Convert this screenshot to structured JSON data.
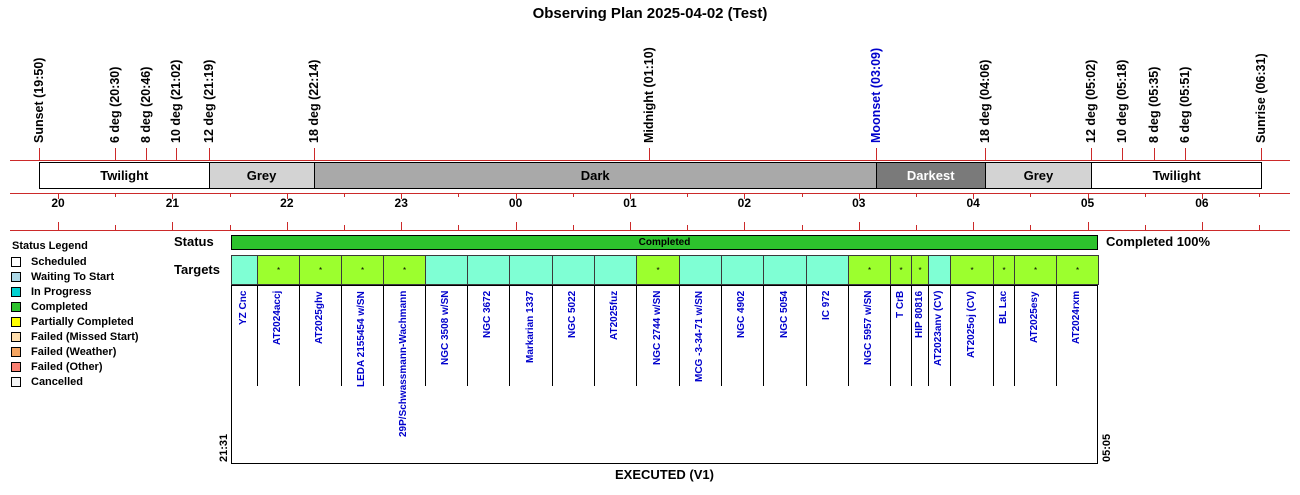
{
  "title": "Observing Plan 2025-04-02 (Test)",
  "events": [
    {
      "label": "Sunset (19:50)",
      "time": "19:50",
      "color": "#000000"
    },
    {
      "label": "6 deg (20:30)",
      "time": "20:30",
      "color": "#000000"
    },
    {
      "label": "8 deg (20:46)",
      "time": "20:46",
      "color": "#000000"
    },
    {
      "label": "10 deg (21:02)",
      "time": "21:02",
      "color": "#000000"
    },
    {
      "label": "12 deg (21:19)",
      "time": "21:19",
      "color": "#000000"
    },
    {
      "label": "18 deg (22:14)",
      "time": "22:14",
      "color": "#000000"
    },
    {
      "label": "Midnight (01:10)",
      "time": "01:10",
      "color": "#000000"
    },
    {
      "label": "Moonset (03:09)",
      "time": "03:09",
      "color": "#0000cc"
    },
    {
      "label": "18 deg (04:06)",
      "time": "04:06",
      "color": "#000000"
    },
    {
      "label": "12 deg (05:02)",
      "time": "05:02",
      "color": "#000000"
    },
    {
      "label": "10 deg (05:18)",
      "time": "05:18",
      "color": "#000000"
    },
    {
      "label": "8 deg (05:35)",
      "time": "05:35",
      "color": "#000000"
    },
    {
      "label": "6 deg (05:51)",
      "time": "05:51",
      "color": "#000000"
    },
    {
      "label": "Sunrise (06:31)",
      "time": "06:31",
      "color": "#000000"
    }
  ],
  "bands": [
    {
      "label": "Twilight",
      "start": "19:50",
      "end": "21:19",
      "color": "#ffffff",
      "text_color": "#000000"
    },
    {
      "label": "Grey",
      "start": "21:19",
      "end": "22:14",
      "color": "#d3d3d3",
      "text_color": "#000000"
    },
    {
      "label": "Dark",
      "start": "22:14",
      "end": "03:09",
      "color": "#a9a9a9",
      "text_color": "#000000"
    },
    {
      "label": "Darkest",
      "start": "03:09",
      "end": "04:06",
      "color": "#7a7a7a",
      "text_color": "#ffffff"
    },
    {
      "label": "Grey",
      "start": "04:06",
      "end": "05:02",
      "color": "#d3d3d3",
      "text_color": "#000000"
    },
    {
      "label": "Twilight",
      "start": "05:02",
      "end": "06:31",
      "color": "#ffffff",
      "text_color": "#000000"
    }
  ],
  "hours": [
    "20",
    "21",
    "22",
    "23",
    "00",
    "01",
    "02",
    "03",
    "04",
    "05",
    "06"
  ],
  "legend": {
    "title": "Status Legend",
    "items": [
      {
        "label": "Scheduled",
        "color": "#ffffff"
      },
      {
        "label": "Waiting To Start",
        "color": "#add8e6"
      },
      {
        "label": "In Progress",
        "color": "#00d0d0"
      },
      {
        "label": "Completed",
        "color": "#2dc22d"
      },
      {
        "label": "Partially Completed",
        "color": "#ffff00"
      },
      {
        "label": "Failed (Missed Start)",
        "color": "#ffdead"
      },
      {
        "label": "Failed (Weather)",
        "color": "#f4a460"
      },
      {
        "label": "Failed (Other)",
        "color": "#fa8072"
      },
      {
        "label": "Cancelled",
        "color": "#f5f5f5"
      }
    ]
  },
  "status_row": {
    "label": "Status",
    "bar_text": "Completed",
    "summary": "Completed 100%"
  },
  "targets_row": {
    "label": "Targets"
  },
  "targets": [
    {
      "name": "YZ Cnc",
      "mark": "",
      "color": "#7fffd4"
    },
    {
      "name": "AT2024accj",
      "mark": "*",
      "color": "#9cff2e"
    },
    {
      "name": "AT2025ghv",
      "mark": "*",
      "color": "#9cff2e"
    },
    {
      "name": "LEDA 2155454 w/SN",
      "mark": "*",
      "color": "#9cff2e"
    },
    {
      "name": "29P/Schwassmann-Wachmann",
      "mark": "*",
      "color": "#9cff2e"
    },
    {
      "name": "NGC 3508 w/SN",
      "mark": "",
      "color": "#7fffd4"
    },
    {
      "name": "NGC 3672",
      "mark": "",
      "color": "#7fffd4"
    },
    {
      "name": "Markarian 1337",
      "mark": "",
      "color": "#7fffd4"
    },
    {
      "name": "NGC 5022",
      "mark": "",
      "color": "#7fffd4"
    },
    {
      "name": "AT2025fuz",
      "mark": "",
      "color": "#7fffd4"
    },
    {
      "name": "NGC 2744 w/SN",
      "mark": "*",
      "color": "#9cff2e"
    },
    {
      "name": "MCG -3-34-71 w/SN",
      "mark": "",
      "color": "#7fffd4"
    },
    {
      "name": "NGC 4902",
      "mark": "",
      "color": "#7fffd4"
    },
    {
      "name": "NGC 5054",
      "mark": "",
      "color": "#7fffd4"
    },
    {
      "name": "IC 972",
      "mark": "",
      "color": "#7fffd4"
    },
    {
      "name": "NGC 5957 w/SN",
      "mark": "*",
      "color": "#9cff2e"
    },
    {
      "name": "T CrB",
      "mark": "*",
      "color": "#9cff2e"
    },
    {
      "name": "HIP 80816",
      "mark": "*",
      "color": "#9cff2e"
    },
    {
      "name": "AT2023anv (CV)",
      "mark": "",
      "color": "#7fffd4"
    },
    {
      "name": "AT2025oj (CV)",
      "mark": "*",
      "color": "#9cff2e"
    },
    {
      "name": "BL Lac",
      "mark": "*",
      "color": "#9cff2e"
    },
    {
      "name": "AT2025esy",
      "mark": "*",
      "color": "#9cff2e"
    },
    {
      "name": "AT2024rxm",
      "mark": "*",
      "color": "#9cff2e"
    }
  ],
  "plan": {
    "start_label": "21:31",
    "end_label": "05:05",
    "footer": "EXECUTED (V1)"
  }
}
